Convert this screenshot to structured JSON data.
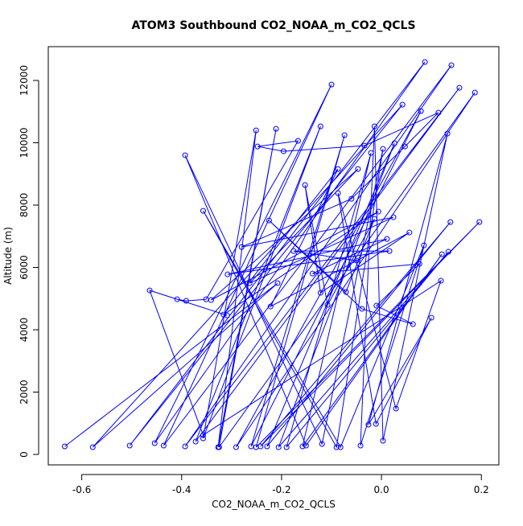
{
  "chart_data": {
    "type": "line",
    "title": "ATOM3 Southbound CO2_NOAA_m_CO2_QCLS",
    "x_label": "CO2_NOAA_m_CO2_QCLS",
    "y_label": "Altitude (m)",
    "color": "#0000ff",
    "markers": true,
    "xlim": [
      -0.667,
      0.235
    ],
    "ylim": [
      -335,
      13084
    ],
    "xticks": [
      -0.6,
      -0.4,
      -0.2,
      {
        "value": 0,
        "label": "0.0"
      },
      0.2
    ],
    "yticks": [
      0,
      2000,
      4000,
      6000,
      8000,
      10000,
      12000
    ],
    "x": [
      -0.634,
      -0.208,
      -0.578,
      0.042,
      -0.504,
      0.087,
      -0.454,
      -0.1,
      -0.436,
      0.14,
      -0.393,
      0.156,
      -0.372,
      -0.122,
      -0.357,
      -0.251,
      -0.327,
      -0.211,
      -0.325,
      0.187,
      -0.291,
      0.079,
      -0.261,
      -0.074,
      -0.251,
      0.196,
      -0.242,
      0.138,
      -0.229,
      0.026,
      -0.206,
      0.134,
      -0.19,
      -0.021,
      -0.158,
      0.121,
      -0.151,
      -0.393,
      -0.119,
      0.003,
      -0.09,
      -0.357,
      -0.082,
      0.085,
      -0.042,
      -0.014,
      0.003,
      0.132,
      -0.026,
      0.1,
      -0.011,
      -0.087,
      0.029,
      0.119,
      -0.357,
      -0.464,
      -0.309,
      -0.409,
      -0.391,
      -0.351,
      -0.167,
      -0.248,
      -0.196,
      -0.034,
      0.114,
      0.047,
      -0.06,
      -0.28,
      0.024,
      -0.264,
      -0.047,
      -0.341,
      -0.006,
      -0.316,
      -0.087,
      -0.222,
      0.056,
      -0.122,
      -0.153,
      -0.108,
      -0.014,
      -0.071,
      -0.225,
      -0.039,
      0.063,
      -0.01,
      0.076,
      -0.138,
      0.011,
      -0.308,
      0.016,
      -0.176,
      -0.05
    ],
    "values": [
      258,
      5495,
      232,
      11223,
      284,
      12590,
      361,
      11868,
      284,
      12487,
      258,
      11765,
      413,
      10526,
      516,
      10397,
      232,
      10449,
      232,
      11610,
      232,
      11017,
      258,
      10243,
      232,
      7456,
      258,
      7456,
      258,
      9985,
      232,
      6502,
      232,
      9675,
      258,
      6424,
      284,
      9598,
      335,
      9804,
      232,
      7817,
      232,
      6708,
      284,
      10526,
      439,
      10294,
      955,
      4386,
      980,
      8385,
      1471,
      5573,
      619,
      5263,
      4463,
      4979,
      4928,
      4979,
      10062,
      9881,
      9727,
      9907,
      10965,
      9881,
      8204,
      6656,
      7611,
      5495,
      9159,
      4954,
      7792,
      4489,
      9159,
      4747,
      7121,
      5186,
      8643,
      4799,
      7559,
      5212,
      7508,
      4670,
      4180,
      4773,
      6115,
      5805,
      6914,
      5779,
      6527,
      6527,
      6218
    ]
  }
}
